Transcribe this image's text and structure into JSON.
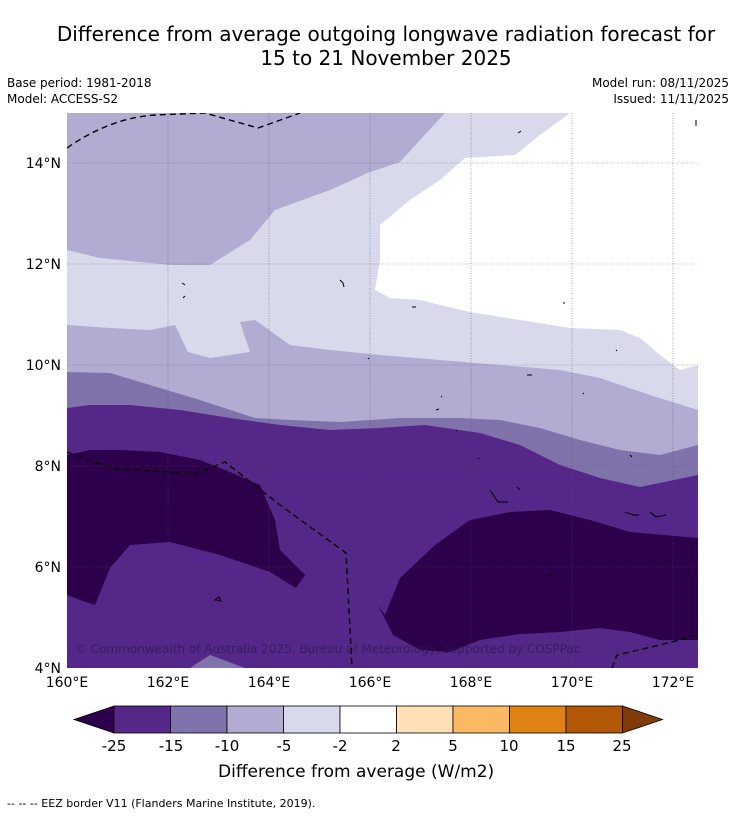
{
  "title": {
    "line1": "Difference from average outgoing longwave radiation forecast for",
    "line2": "15 to 21 November 2025"
  },
  "meta": {
    "base_period": "Base period: 1981-2018",
    "model": "Model: ACCESS-S2",
    "model_run": "Model run: 08/11/2025",
    "issued": "Issued: 11/11/2025"
  },
  "map": {
    "lat_ticks": [
      "14°N",
      "12°N",
      "10°N",
      "8°N",
      "6°N",
      "4°N"
    ],
    "lon_ticks": [
      "160°E",
      "162°E",
      "164°E",
      "166°E",
      "168°E",
      "170°E",
      "172°E"
    ],
    "copyright": "© Commonwealth of Australia 2025, Bureau of Meteorology, supported by COSPPac"
  },
  "colorbar": {
    "labels": [
      "-25",
      "-15",
      "-10",
      "-5",
      "-2",
      "2",
      "5",
      "10",
      "15",
      "25"
    ],
    "colors": [
      "#2d004b",
      "#542788",
      "#8073ac",
      "#b2abd2",
      "#d8daeb",
      "#ffffff",
      "#fee0b6",
      "#fdb863",
      "#e08214",
      "#b35806",
      "#7f3b08"
    ],
    "title": "Difference from average (W/m2)"
  },
  "footnote": "--  --  -- EEZ border V11 (Flanders Marine Institute, 2019)."
}
